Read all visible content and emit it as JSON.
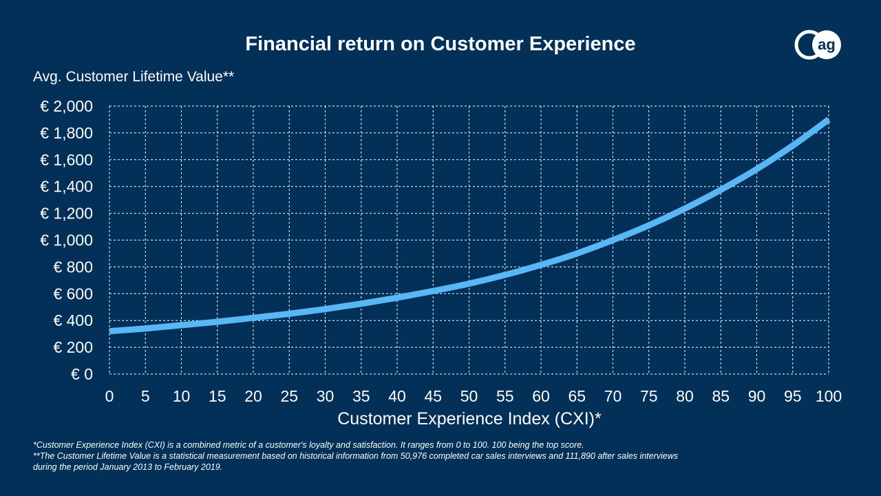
{
  "chart_data": {
    "type": "line",
    "title": "Financial return on Customer Experience",
    "ylabel": "Avg. Customer Lifetime Value**",
    "xlabel": "Customer Experience Index (CXI)*",
    "xlim": [
      0,
      100
    ],
    "ylim": [
      0,
      2000
    ],
    "x_ticks": [
      0,
      5,
      10,
      15,
      20,
      25,
      30,
      35,
      40,
      45,
      50,
      55,
      60,
      65,
      70,
      75,
      80,
      85,
      90,
      95,
      100
    ],
    "y_ticks": [
      0,
      200,
      400,
      600,
      800,
      1000,
      1200,
      1400,
      1600,
      1800,
      2000
    ],
    "y_tick_labels": [
      "€ 0",
      "€ 200",
      "€ 400",
      "€ 600",
      "€ 800",
      "€ 1,000",
      "€ 1,200",
      "€ 1,400",
      "€ 1,600",
      "€ 1,800",
      "€ 2,000"
    ],
    "grid": true,
    "series": [
      {
        "name": "Avg. Customer Lifetime Value",
        "color": "#58B7F4",
        "x": [
          0,
          5,
          10,
          15,
          20,
          25,
          30,
          35,
          40,
          45,
          50,
          55,
          60,
          65,
          70,
          75,
          80,
          85,
          90,
          95,
          100
        ],
        "values": [
          320,
          340,
          365,
          390,
          420,
          450,
          485,
          525,
          570,
          620,
          675,
          740,
          815,
          900,
          1000,
          1110,
          1235,
          1375,
          1530,
          1705,
          1900
        ]
      }
    ]
  },
  "logo": {
    "text": "ag"
  },
  "footnotes": [
    "*Customer Experience Index (CXI) is a combined metric of a customer's loyalty and satisfaction. It ranges from 0 to 100. 100 being the top score.",
    "**The Customer Lifetime Value is a statistical measurement based on historical information from 50,976 completed car sales interviews and 111,890 after sales interviews",
    "during the period January 2013 to February 2019."
  ],
  "colors": {
    "background": "#023059",
    "line": "#58B7F4",
    "text": "#FFFFFF",
    "grid": "#FFFFFF"
  }
}
